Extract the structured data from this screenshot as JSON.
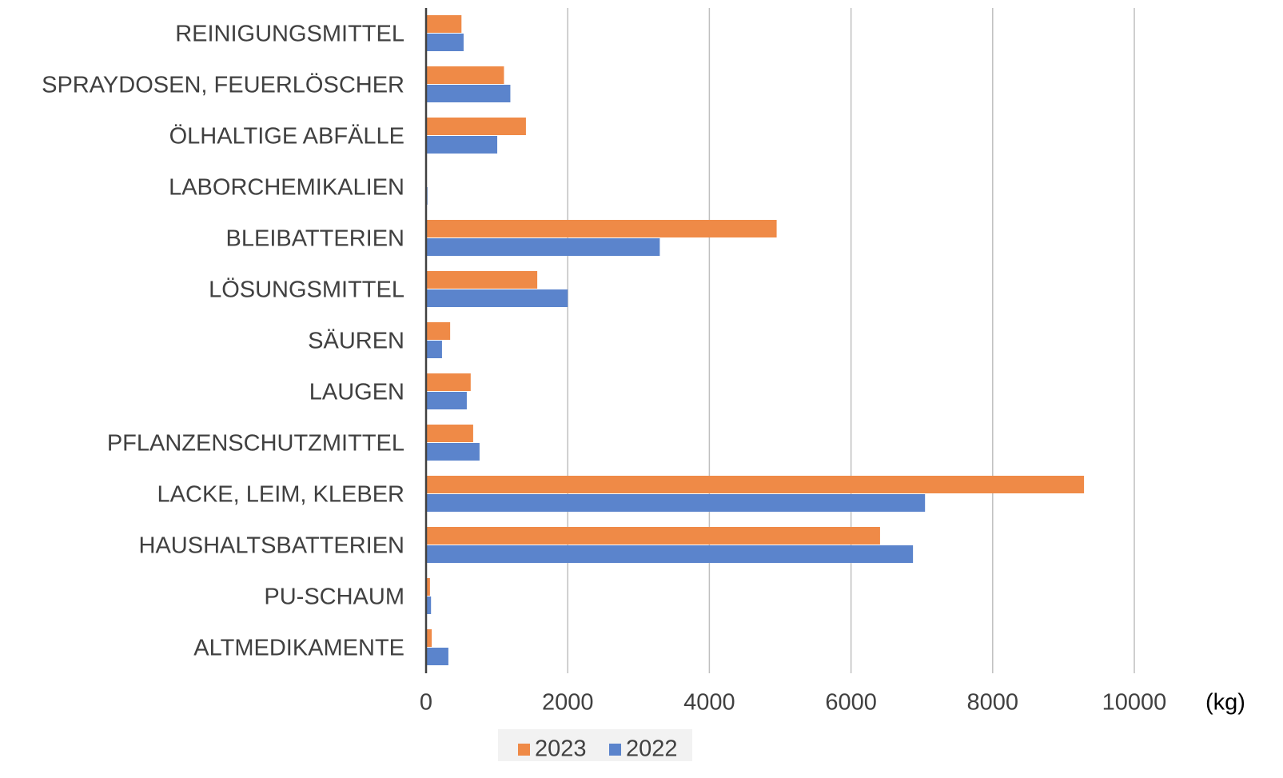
{
  "chart_data": {
    "type": "hbar",
    "categories": [
      "REINIGUNGSMITTEL",
      "SPRAYDOSEN, FEUERLÖSCHER",
      "ÖLHALTIGE ABFÄLLE",
      "LABORCHEMIKALIEN",
      "BLEIBATTERIEN",
      "LÖSUNGSMITTEL",
      "SÄUREN",
      "LAUGEN",
      "PFLANZENSCHUTZMITTEL",
      "LACKE, LEIM, KLEBER",
      "HAUSHALTSBATTERIEN",
      "PU-SCHAUM",
      "ALTMEDIKAMENTE"
    ],
    "series": [
      {
        "name": "2023",
        "color": "#ef8a47",
        "values": [
          500,
          1100,
          1410,
          5,
          4950,
          1570,
          340,
          630,
          665,
          9290,
          6410,
          55,
          80
        ]
      },
      {
        "name": "2022",
        "color": "#5b84cc",
        "values": [
          530,
          1190,
          1005,
          20,
          3300,
          2000,
          225,
          575,
          755,
          7045,
          6875,
          70,
          315
        ]
      }
    ],
    "xlim": [
      0,
      10000
    ],
    "xticks": [
      0,
      2000,
      4000,
      6000,
      8000,
      10000
    ],
    "unit_label": "(kg)",
    "grid": true,
    "legend": "bottom"
  }
}
